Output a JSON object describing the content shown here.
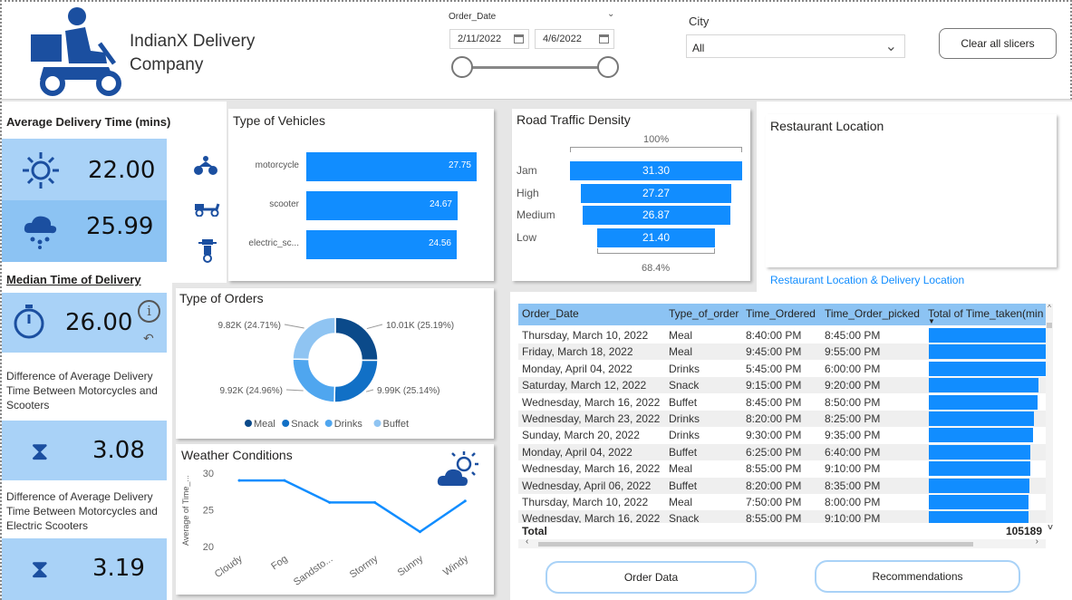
{
  "header": {
    "company_line1": "IndianX Delivery",
    "company_line2": "Company",
    "order_date_label": "Order_Date",
    "date_from": "2/11/2022",
    "date_to": "4/6/2022",
    "city_label": "City",
    "city_value": "All",
    "clear_button": "Clear all slicers"
  },
  "kpis": {
    "avg_title": "Average Delivery Time (mins)",
    "sunny_value": "22.00",
    "rainy_value": "25.99",
    "median_title": "Median Time of Delivery",
    "median_value": "26.00",
    "diff1_text": "Difference of Average Delivery Time Between Motorcycles and Scooters",
    "diff1_value": "3.08",
    "diff2_text": "Difference of Average Delivery Time Between Motorcycles and Electric Scooters",
    "diff2_value": "3.19"
  },
  "vehicles": {
    "title": "Type of Vehicles",
    "items": [
      {
        "label": "motorcycle",
        "value": 27.75,
        "display": "27.75"
      },
      {
        "label": "scooter",
        "value": 24.67,
        "display": "24.67"
      },
      {
        "label": "electric_sc...",
        "value": 24.56,
        "display": "24.56"
      }
    ]
  },
  "traffic": {
    "title": "Road Traffic Density",
    "top_pct": "100%",
    "bottom_pct": "68.4%",
    "items": [
      {
        "label": "Jam",
        "value": 31.3,
        "display": "31.30"
      },
      {
        "label": "High",
        "value": 27.27,
        "display": "27.27"
      },
      {
        "label": "Medium",
        "value": 26.87,
        "display": "26.87"
      },
      {
        "label": "Low",
        "value": 21.4,
        "display": "21.40"
      }
    ]
  },
  "restaurant": {
    "title": "Restaurant Location",
    "link": "Restaurant Location & Delivery Location"
  },
  "orders": {
    "title": "Type of Orders",
    "slices": [
      {
        "name": "Meal",
        "value": 10.01,
        "label": "10.01K (25.19%)",
        "color": "#0b4a8a"
      },
      {
        "name": "Snack",
        "value": 9.99,
        "label": "9.99K (25.14%)",
        "color": "#1170c6"
      },
      {
        "name": "Drinks",
        "value": 9.92,
        "label": "9.92K (24.96%)",
        "color": "#4fa6ef"
      },
      {
        "name": "Buffet",
        "value": 9.82,
        "label": "9.82K (24.71%)",
        "color": "#8fc4f2"
      }
    ]
  },
  "chart_data": {
    "type": "line",
    "title": "Weather Conditions",
    "ylabel": "Average of Time_...",
    "categories": [
      "Cloudy",
      "Fog",
      "Sandsto...",
      "Stormy",
      "Sunny",
      "Windy"
    ],
    "values": [
      29.0,
      29.0,
      26.0,
      26.0,
      22.0,
      26.2
    ],
    "ylim": [
      20,
      30
    ],
    "yticks": [
      "20",
      "25",
      "30"
    ],
    "color": "#118dff"
  },
  "table": {
    "columns": [
      "Order_Date",
      "Type_of_order",
      "Time_Ordered",
      "Time_Order_picked",
      "Total of Time_taken(min"
    ],
    "rows": [
      {
        "date": "Thursday, March 10, 2022",
        "type": "Meal",
        "ordered": "8:40:00 PM",
        "picked": "8:45:00 PM",
        "bar": 1.0
      },
      {
        "date": "Friday, March 18, 2022",
        "type": "Meal",
        "ordered": "9:45:00 PM",
        "picked": "9:55:00 PM",
        "bar": 1.0
      },
      {
        "date": "Monday, April 04, 2022",
        "type": "Drinks",
        "ordered": "5:45:00 PM",
        "picked": "6:00:00 PM",
        "bar": 1.0
      },
      {
        "date": "Saturday, March 12, 2022",
        "type": "Snack",
        "ordered": "9:15:00 PM",
        "picked": "9:20:00 PM",
        "bar": 0.94
      },
      {
        "date": "Wednesday, March 16, 2022",
        "type": "Buffet",
        "ordered": "8:45:00 PM",
        "picked": "8:50:00 PM",
        "bar": 0.93
      },
      {
        "date": "Wednesday, March 23, 2022",
        "type": "Drinks",
        "ordered": "8:20:00 PM",
        "picked": "8:25:00 PM",
        "bar": 0.9
      },
      {
        "date": "Sunday, March 20, 2022",
        "type": "Drinks",
        "ordered": "9:30:00 PM",
        "picked": "9:35:00 PM",
        "bar": 0.89
      },
      {
        "date": "Monday, April 04, 2022",
        "type": "Buffet",
        "ordered": "6:25:00 PM",
        "picked": "6:40:00 PM",
        "bar": 0.87
      },
      {
        "date": "Wednesday, March 16, 2022",
        "type": "Meal",
        "ordered": "8:55:00 PM",
        "picked": "9:10:00 PM",
        "bar": 0.87
      },
      {
        "date": "Wednesday, April 06, 2022",
        "type": "Buffet",
        "ordered": "8:20:00 PM",
        "picked": "8:35:00 PM",
        "bar": 0.86
      },
      {
        "date": "Thursday, March 10, 2022",
        "type": "Meal",
        "ordered": "7:50:00 PM",
        "picked": "8:00:00 PM",
        "bar": 0.85
      },
      {
        "date": "Wednesday, March 16, 2022",
        "type": "Snack",
        "ordered": "8:55:00 PM",
        "picked": "9:10:00 PM",
        "bar": 0.85
      }
    ],
    "total_label": "Total",
    "total_value": "105189"
  },
  "nav": {
    "order_data": "Order Data",
    "recommendations": "Recommendations"
  },
  "colors": {
    "accent": "#118dff",
    "kpi_light": "#a9d2f7",
    "kpi_mid": "#8cc3f3"
  }
}
